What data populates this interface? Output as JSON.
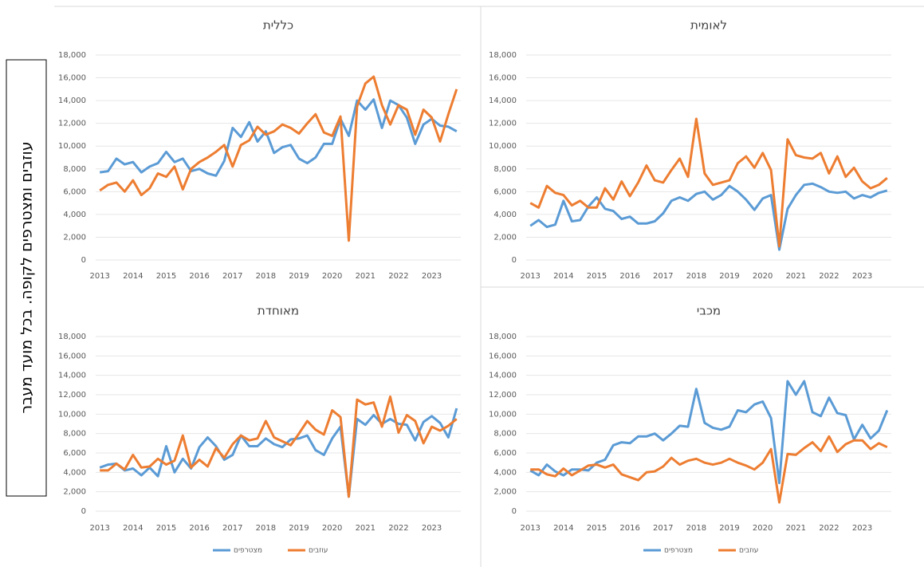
{
  "side_label": "עוזבים ומצטרפים לקופה. בכל מועד מעבר",
  "chart_data": [
    {
      "type": "line",
      "title": "כללית",
      "categories": [
        "2013",
        null,
        null,
        null,
        "2014",
        null,
        null,
        null,
        "2015",
        null,
        null,
        null,
        "2016",
        null,
        null,
        null,
        "2017",
        null,
        null,
        null,
        "2018",
        null,
        null,
        null,
        "2019",
        null,
        null,
        null,
        "2020",
        null,
        null,
        null,
        "2021",
        null,
        null,
        null,
        "2022",
        null,
        null,
        null,
        "2023",
        null,
        null,
        null
      ],
      "series": [
        {
          "name": "מצטרפים",
          "color": "#5b9bd5",
          "values": [
            7700,
            7800,
            8900,
            8400,
            8600,
            7700,
            8200,
            8500,
            9500,
            8600,
            8900,
            7800,
            8000,
            7600,
            7400,
            8700,
            11600,
            10800,
            12100,
            10400,
            11300,
            9400,
            9900,
            10100,
            8900,
            8500,
            9000,
            10200,
            10200,
            12400,
            10900,
            14000,
            13200,
            14100,
            11600,
            14000,
            13600,
            12500,
            10200,
            11900,
            12400,
            11800,
            11700,
            11300
          ]
        },
        {
          "name": "עוזבים",
          "color": "#ed7d31",
          "values": [
            6100,
            6600,
            6800,
            6000,
            7000,
            5700,
            6300,
            7600,
            7300,
            8200,
            6200,
            8000,
            8600,
            9000,
            9500,
            10100,
            8200,
            10100,
            10500,
            11700,
            11000,
            11300,
            11900,
            11600,
            11100,
            12000,
            12800,
            11200,
            10900,
            12600,
            1700,
            13500,
            15500,
            16100,
            13600,
            11900,
            13600,
            13200,
            11000,
            13200,
            12500,
            10400,
            12800,
            15000
          ]
        }
      ],
      "ylim": [
        0,
        18000
      ],
      "yticks": [
        0,
        {
          "value": 2000,
          "label": "2,000"
        },
        {
          "value": 4000,
          "label": "4,000"
        },
        {
          "value": 6000,
          "label": "6,000"
        },
        {
          "value": 8000,
          "label": "8,000"
        },
        {
          "value": 10000,
          "label": "10,000"
        },
        {
          "value": 12000,
          "label": "12,000"
        },
        {
          "value": 14000,
          "label": "14,000"
        },
        {
          "value": 16000,
          "label": "16,000"
        },
        {
          "value": 18000,
          "label": "18,000"
        }
      ],
      "grid": true
    },
    {
      "type": "line",
      "title": "לאומית",
      "categories": [
        "2013",
        null,
        null,
        null,
        "2014",
        null,
        null,
        null,
        "2015",
        null,
        null,
        null,
        "2016",
        null,
        null,
        null,
        "2017",
        null,
        null,
        null,
        "2018",
        null,
        null,
        null,
        "2019",
        null,
        null,
        null,
        "2020",
        null,
        null,
        null,
        "2021",
        null,
        null,
        null,
        "2022",
        null,
        null,
        null,
        "2023",
        null,
        null,
        null
      ],
      "series": [
        {
          "name": "מצטרפים",
          "color": "#5b9bd5",
          "values": [
            3000,
            3500,
            2900,
            3100,
            5200,
            3400,
            3500,
            4700,
            5500,
            4500,
            4300,
            3600,
            3800,
            3200,
            3200,
            3400,
            4100,
            5200,
            5500,
            5200,
            5800,
            6000,
            5300,
            5700,
            6500,
            6000,
            5300,
            4400,
            5400,
            5700,
            900,
            4500,
            5700,
            6600,
            6700,
            6400,
            6000,
            5900,
            6000,
            5400,
            5700,
            5500,
            5900,
            6100
          ]
        },
        {
          "name": "עוזבים",
          "color": "#ed7d31",
          "values": [
            5000,
            4600,
            6500,
            5900,
            5700,
            4800,
            5200,
            4600,
            4600,
            6300,
            5300,
            6900,
            5600,
            6800,
            8300,
            7000,
            6800,
            7900,
            8900,
            7300,
            12400,
            7600,
            6600,
            6800,
            7000,
            8500,
            9100,
            8100,
            9400,
            7900,
            1200,
            10600,
            9200,
            9000,
            8900,
            9400,
            7600,
            9100,
            7300,
            8100,
            6900,
            6300,
            6600,
            7200
          ]
        }
      ],
      "ylim": [
        0,
        18000
      ],
      "yticks": [
        0,
        {
          "value": 2000,
          "label": "2,000"
        },
        {
          "value": 4000,
          "label": "4,000"
        },
        {
          "value": 6000,
          "label": "6,000"
        },
        {
          "value": 8000,
          "label": "8,000"
        },
        {
          "value": 10000,
          "label": "10,000"
        },
        {
          "value": 12000,
          "label": "12,000"
        },
        {
          "value": 14000,
          "label": "14,000"
        },
        {
          "value": 16000,
          "label": "16,000"
        },
        {
          "value": 18000,
          "label": "18,000"
        }
      ],
      "grid": true
    },
    {
      "type": "line",
      "title": "מאוחדת",
      "categories": [
        "2013",
        null,
        null,
        null,
        "2014",
        null,
        null,
        null,
        "2015",
        null,
        null,
        null,
        "2016",
        null,
        null,
        null,
        "2017",
        null,
        null,
        null,
        "2018",
        null,
        null,
        null,
        "2019",
        null,
        null,
        null,
        "2020",
        null,
        null,
        null,
        "2021",
        null,
        null,
        null,
        "2022",
        null,
        null,
        null,
        "2023",
        null,
        null,
        null
      ],
      "series": [
        {
          "name": "מצטרפים",
          "color": "#5b9bd5",
          "values": [
            4500,
            4800,
            4900,
            4200,
            4400,
            3700,
            4500,
            3600,
            6700,
            4000,
            5400,
            4400,
            6600,
            7600,
            6700,
            5300,
            5800,
            7800,
            6700,
            6700,
            7500,
            6900,
            6600,
            7400,
            7500,
            7800,
            6300,
            5800,
            7500,
            8700,
            1500,
            9500,
            8900,
            9900,
            9000,
            9500,
            9000,
            8900,
            7300,
            9200,
            9800,
            9100,
            7600,
            10600
          ]
        },
        {
          "name": "עוזבים",
          "color": "#ed7d31",
          "values": [
            4200,
            4200,
            4900,
            4300,
            5800,
            4500,
            4600,
            5400,
            4800,
            5200,
            7800,
            4500,
            5300,
            4600,
            6500,
            5500,
            6900,
            7800,
            7300,
            7500,
            9300,
            7600,
            7200,
            6800,
            8000,
            9300,
            8400,
            7900,
            10400,
            9700,
            1500,
            11500,
            11000,
            11200,
            8700,
            11800,
            8100,
            9900,
            9300,
            7000,
            8700,
            8300,
            8800,
            9500
          ]
        }
      ],
      "ylim": [
        0,
        18000
      ],
      "yticks": [
        0,
        {
          "value": 2000,
          "label": "2,000"
        },
        {
          "value": 4000,
          "label": "4,000"
        },
        {
          "value": 6000,
          "label": "6,000"
        },
        {
          "value": 8000,
          "label": "8,000"
        },
        {
          "value": 10000,
          "label": "10,000"
        },
        {
          "value": 12000,
          "label": "12,000"
        },
        {
          "value": 14000,
          "label": "14,000"
        },
        {
          "value": 16000,
          "label": "16,000"
        },
        {
          "value": 18000,
          "label": "18,000"
        }
      ],
      "grid": true,
      "legend": "bottom"
    },
    {
      "type": "line",
      "title": "מכבי",
      "categories": [
        "2013",
        null,
        null,
        null,
        "2014",
        null,
        null,
        null,
        "2015",
        null,
        null,
        null,
        "2016",
        null,
        null,
        null,
        "2017",
        null,
        null,
        null,
        "2018",
        null,
        null,
        null,
        "2019",
        null,
        null,
        null,
        "2020",
        null,
        null,
        null,
        "2021",
        null,
        null,
        null,
        "2022",
        null,
        null,
        null,
        "2023",
        null,
        null,
        null
      ],
      "series": [
        {
          "name": "מצטרפים",
          "color": "#5b9bd5",
          "values": [
            4200,
            3700,
            4800,
            4100,
            3700,
            4300,
            4300,
            4200,
            5000,
            5300,
            6800,
            7100,
            7000,
            7700,
            7700,
            8000,
            7300,
            8000,
            8800,
            8700,
            12600,
            9100,
            8600,
            8400,
            8700,
            10400,
            10200,
            11000,
            11300,
            9600,
            2900,
            13400,
            12000,
            13400,
            10200,
            9800,
            11700,
            10100,
            9900,
            7400,
            8900,
            7500,
            8300,
            10400
          ]
        },
        {
          "name": "עוזבים",
          "color": "#ed7d31",
          "values": [
            4300,
            4300,
            3800,
            3600,
            4400,
            3700,
            4200,
            4700,
            4800,
            4500,
            4800,
            3800,
            3500,
            3200,
            4000,
            4100,
            4600,
            5500,
            4800,
            5200,
            5400,
            5000,
            4800,
            5000,
            5400,
            5000,
            4700,
            4300,
            5000,
            6400,
            900,
            5900,
            5800,
            6500,
            7100,
            6200,
            7700,
            6100,
            6900,
            7300,
            7300,
            6400,
            7000,
            6600
          ]
        }
      ],
      "ylim": [
        0,
        18000
      ],
      "yticks": [
        0,
        {
          "value": 2000,
          "label": "2,000"
        },
        {
          "value": 4000,
          "label": "4,000"
        },
        {
          "value": 6000,
          "label": "6,000"
        },
        {
          "value": 8000,
          "label": "8,000"
        },
        {
          "value": 10000,
          "label": "10,000"
        },
        {
          "value": 12000,
          "label": "12,000"
        },
        {
          "value": 14000,
          "label": "14,000"
        },
        {
          "value": 16000,
          "label": "16,000"
        },
        {
          "value": 18000,
          "label": "18,000"
        }
      ],
      "grid": true,
      "legend": "bottom"
    }
  ]
}
